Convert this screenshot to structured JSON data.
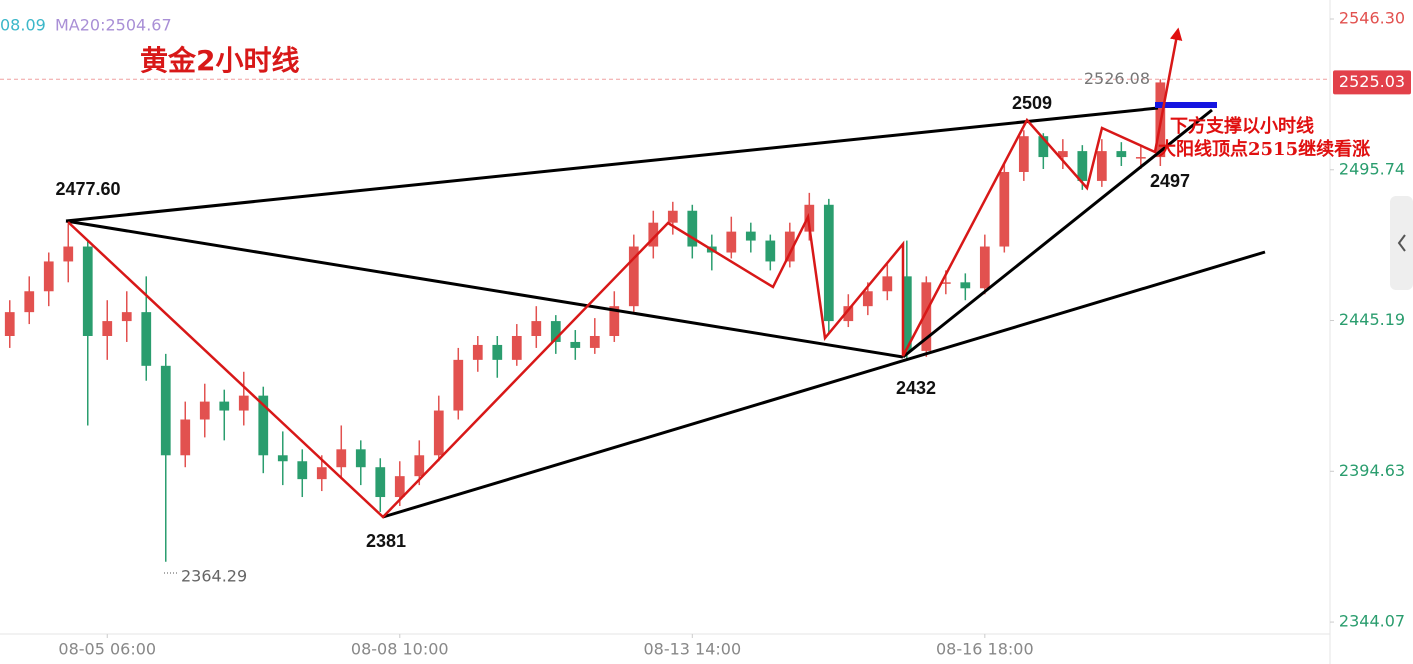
{
  "chart_data": {
    "type": "candlestick",
    "title": "黄金2小时线",
    "ma_labels": [
      "08.09",
      "MA20:2504.67"
    ],
    "up_color": "#e2514f",
    "down_color": "#2a9d6e",
    "open": [
      2440,
      2448,
      2455,
      2465,
      2470,
      2440,
      2445,
      2448,
      2430,
      2400,
      2412,
      2418,
      2415,
      2420,
      2400,
      2398,
      2392,
      2396,
      2402,
      2396,
      2386,
      2393,
      2400,
      2415,
      2432,
      2437,
      2432,
      2440,
      2445,
      2438,
      2436,
      2440,
      2450,
      2470,
      2478,
      2482,
      2470,
      2468,
      2475,
      2472,
      2465,
      2475,
      2484,
      2445,
      2450,
      2455,
      2460,
      2435,
      2458,
      2458,
      2456,
      2470,
      2495,
      2507,
      2500,
      2502,
      2492,
      2502,
      2500,
      2500
    ],
    "high": [
      2452,
      2460,
      2468,
      2477.6,
      2472,
      2452,
      2455,
      2460,
      2434,
      2418,
      2424,
      2422,
      2428,
      2423,
      2408,
      2402,
      2400,
      2410,
      2405,
      2399,
      2398,
      2405,
      2420,
      2436,
      2440,
      2440,
      2444,
      2450,
      2447,
      2442,
      2446,
      2455,
      2474,
      2482,
      2485,
      2484,
      2474,
      2480,
      2478,
      2474,
      2478,
      2488,
      2486,
      2454,
      2458,
      2464,
      2472,
      2460,
      2462,
      2461,
      2474,
      2498,
      2509,
      2508,
      2506,
      2504,
      2506,
      2505,
      2504,
      2526.08
    ],
    "low": [
      2436,
      2444,
      2450,
      2458,
      2410,
      2432,
      2438,
      2425,
      2364.29,
      2396,
      2406,
      2405,
      2410,
      2394,
      2390,
      2386,
      2388,
      2392,
      2390,
      2381,
      2383,
      2390,
      2398,
      2412,
      2428,
      2426,
      2430,
      2436,
      2434,
      2432,
      2434,
      2438,
      2448,
      2466,
      2474,
      2466,
      2462,
      2466,
      2468,
      2462,
      2463,
      2472,
      2441,
      2443,
      2447,
      2452,
      2432,
      2433,
      2454,
      2452,
      2454,
      2468,
      2492,
      2496,
      2496,
      2489,
      2490,
      2497,
      2496,
      2497
    ],
    "close": [
      2448,
      2455,
      2465,
      2470,
      2440,
      2445,
      2448,
      2430,
      2400,
      2412,
      2418,
      2415,
      2420,
      2400,
      2398,
      2392,
      2396,
      2402,
      2396,
      2386,
      2393,
      2400,
      2415,
      2432,
      2437,
      2432,
      2440,
      2445,
      2438,
      2436,
      2440,
      2450,
      2470,
      2478,
      2482,
      2470,
      2468,
      2475,
      2472,
      2465,
      2475,
      2484,
      2445,
      2450,
      2455,
      2460,
      2435,
      2458,
      2458,
      2456,
      2470,
      2495,
      2507,
      2500,
      2502,
      2492,
      2502,
      2500,
      2500,
      2525.03
    ],
    "xlim": [
      -0.5,
      67.7
    ],
    "xticks": [
      {
        "value": 5,
        "label": "08-05 06:00"
      },
      {
        "value": 20,
        "label": "08-08 10:00"
      },
      {
        "value": 35,
        "label": "08-13 14:00"
      },
      {
        "value": 50,
        "label": "08-16 18:00"
      }
    ],
    "ylim": [
      2340.07,
      2552.67
    ],
    "yticks": [
      {
        "value": 2546.3,
        "label": "2546.30"
      },
      2495.74,
      2445.19,
      2394.63,
      2344.07
    ],
    "last_price": 2525.03,
    "high_marker": 2526.08,
    "annotations": [
      "2477.60",
      "2381",
      "2432",
      "2509",
      "2497",
      "2364.29"
    ],
    "note": [
      "下方支撑以小时线",
      "大阳线顶点2515继续看涨"
    ]
  }
}
